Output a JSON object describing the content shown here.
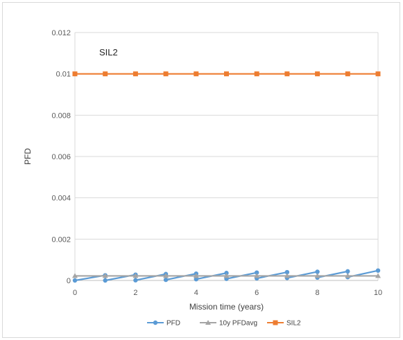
{
  "chart_data": {
    "type": "line",
    "title": "",
    "xlabel": "Mission time (years)",
    "ylabel": "PFD",
    "xlim": [
      0,
      10
    ],
    "ylim": [
      0,
      0.012
    ],
    "x_ticks": [
      0,
      2,
      4,
      6,
      8,
      10
    ],
    "x_tick_labels": [
      "0",
      "2",
      "4",
      "6",
      "8",
      "10"
    ],
    "y_ticks": [
      0,
      0.002,
      0.004,
      0.006,
      0.008,
      0.01,
      0.012
    ],
    "y_tick_labels": [
      "0",
      "0.002",
      "0.004",
      "0.006",
      "0.008",
      "0.01",
      "0.012"
    ],
    "grid": "horizontal",
    "legend_position": "bottom",
    "annotation": "SIL2",
    "series": [
      {
        "name": "PFD",
        "color": "#5b9bd5",
        "marker": "circle",
        "points": [
          [
            0,
            0
          ],
          [
            1,
            0.00025
          ],
          [
            1,
            0.0
          ],
          [
            2,
            0.00028
          ],
          [
            2,
            1e-05
          ],
          [
            3,
            0.00031
          ],
          [
            3,
            3e-05
          ],
          [
            4,
            0.00033
          ],
          [
            4,
            6e-05
          ],
          [
            5,
            0.00036
          ],
          [
            5,
            8e-05
          ],
          [
            6,
            0.00038
          ],
          [
            6,
            0.0001
          ],
          [
            7,
            0.0004
          ],
          [
            7,
            0.00012
          ],
          [
            8,
            0.00042
          ],
          [
            8,
            0.00014
          ],
          [
            9,
            0.00044
          ],
          [
            9,
            0.00016
          ],
          [
            10,
            0.00048
          ]
        ]
      },
      {
        "name": "10y PFDavg",
        "color": "#a5a5a5",
        "marker": "triangle",
        "points": [
          [
            0,
            0.00022
          ],
          [
            1,
            0.00022
          ],
          [
            2,
            0.00022
          ],
          [
            3,
            0.00022
          ],
          [
            4,
            0.00022
          ],
          [
            5,
            0.00022
          ],
          [
            6,
            0.00022
          ],
          [
            7,
            0.00022
          ],
          [
            8,
            0.00022
          ],
          [
            9,
            0.00022
          ],
          [
            10,
            0.00022
          ]
        ]
      },
      {
        "name": "SIL2",
        "color": "#ed7d31",
        "marker": "square",
        "points": [
          [
            0,
            0.01
          ],
          [
            1,
            0.01
          ],
          [
            2,
            0.01
          ],
          [
            3,
            0.01
          ],
          [
            4,
            0.01
          ],
          [
            5,
            0.01
          ],
          [
            6,
            0.01
          ],
          [
            7,
            0.01
          ],
          [
            8,
            0.01
          ],
          [
            9,
            0.01
          ],
          [
            10,
            0.01
          ]
        ]
      }
    ]
  }
}
